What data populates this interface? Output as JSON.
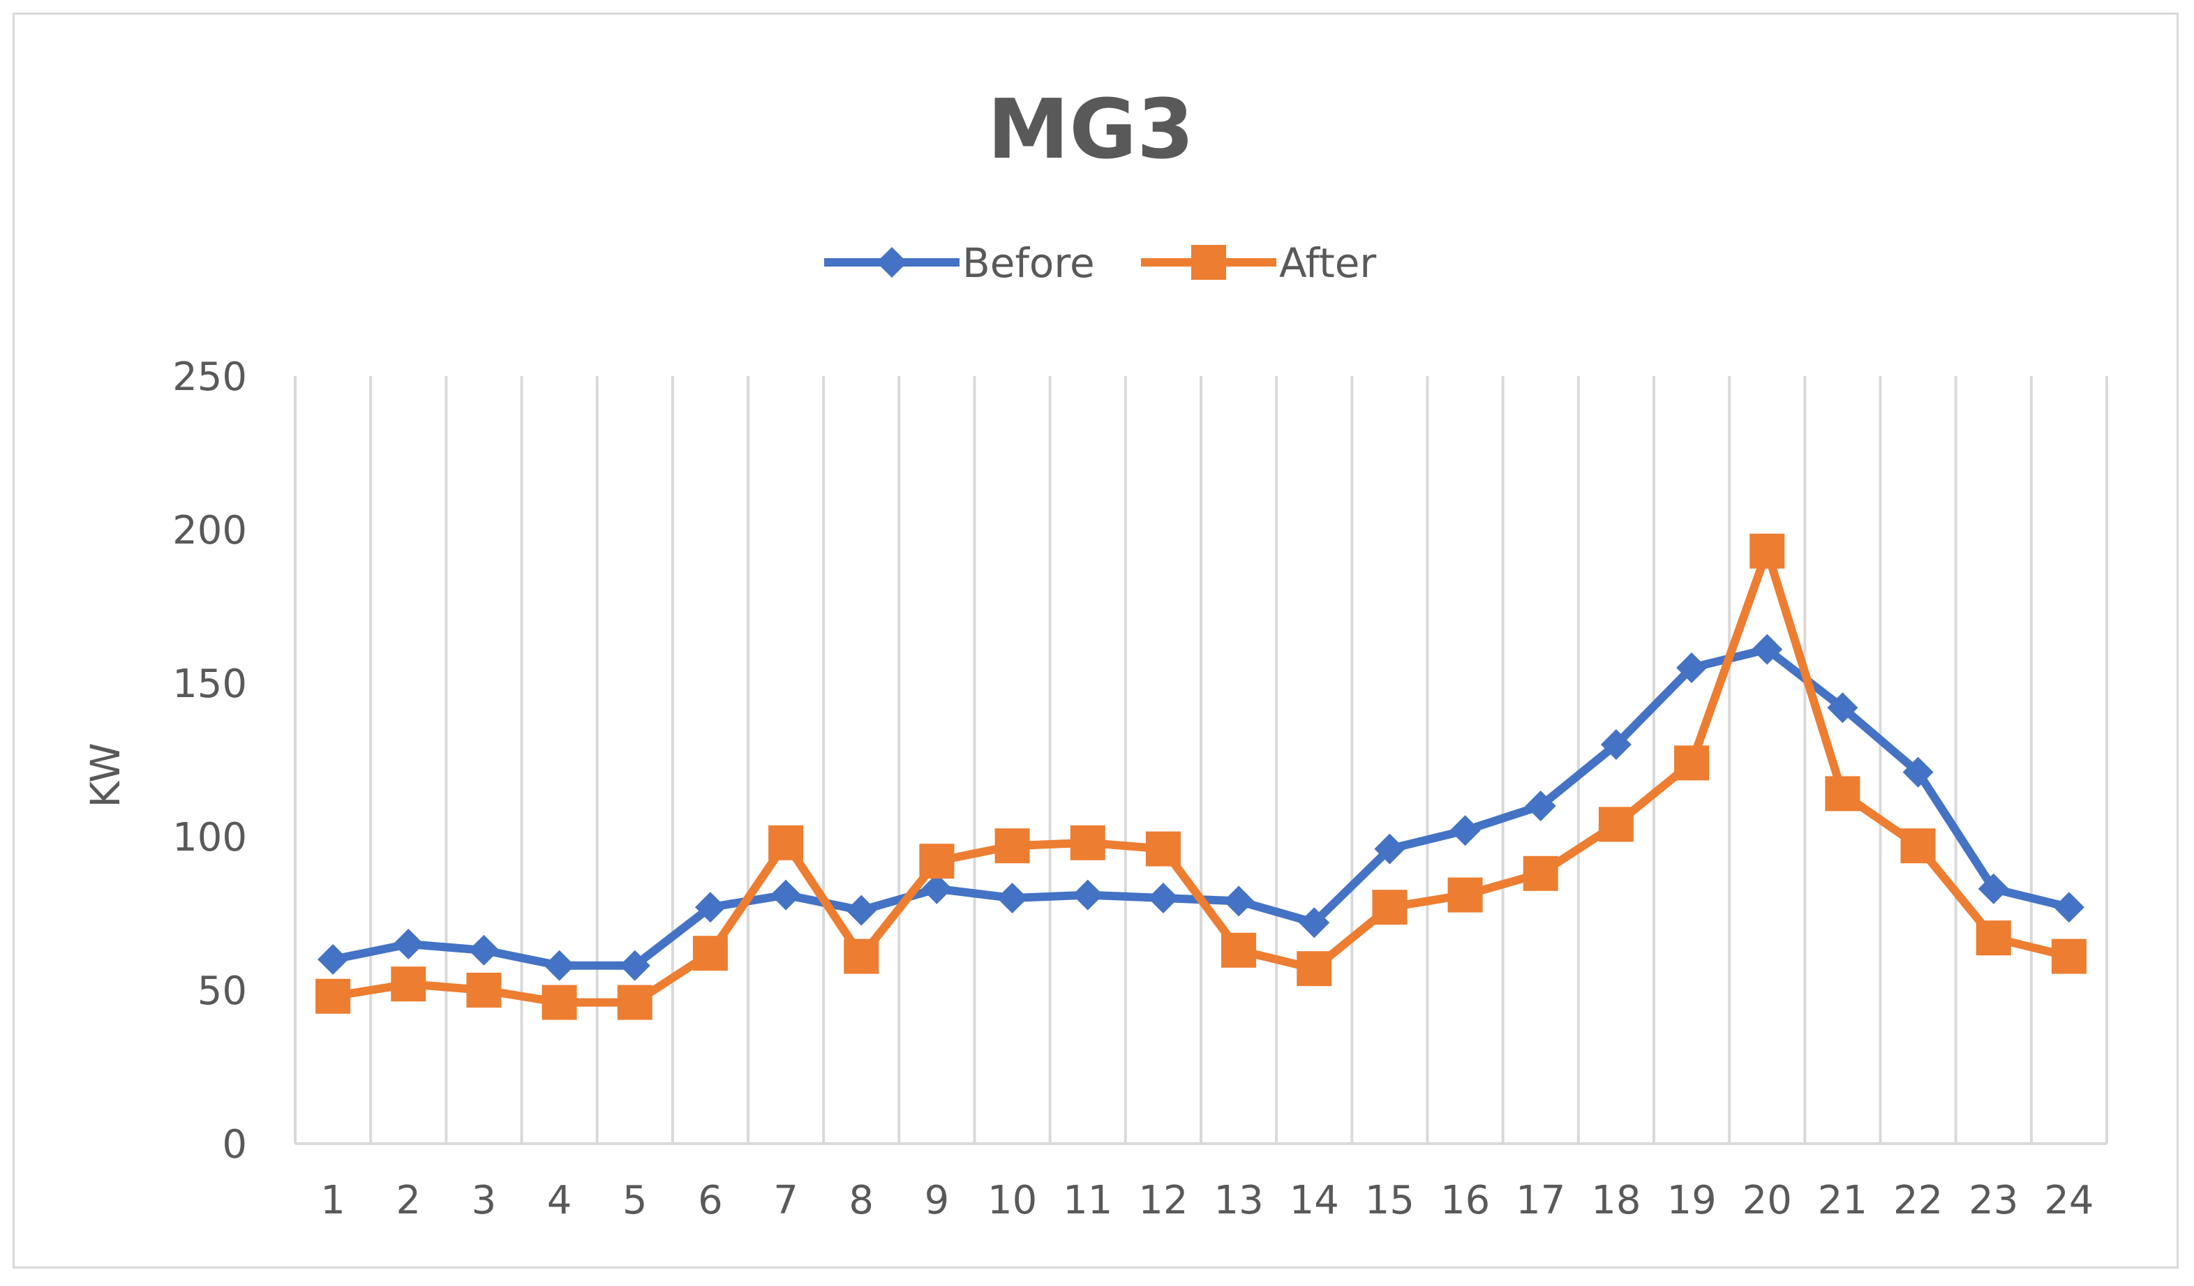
{
  "chart_data": {
    "type": "line",
    "title": "MG3",
    "xlabel": "",
    "ylabel": "KW",
    "ylim": [
      0,
      250
    ],
    "yticks": [
      0,
      50,
      100,
      150,
      200,
      250
    ],
    "categories": [
      "1",
      "2",
      "3",
      "4",
      "5",
      "6",
      "7",
      "8",
      "9",
      "10",
      "11",
      "12",
      "13",
      "14",
      "15",
      "16",
      "17",
      "18",
      "19",
      "20",
      "21",
      "22",
      "23",
      "24"
    ],
    "grid": "vertical",
    "legend_position": "top",
    "series": [
      {
        "name": "Before",
        "color": "#4472c4",
        "marker": "diamond",
        "values": [
          60,
          65,
          63,
          58,
          58,
          77,
          81,
          76,
          83,
          80,
          81,
          80,
          79,
          72,
          96,
          102,
          110,
          130,
          155,
          161,
          142,
          121,
          83,
          77
        ]
      },
      {
        "name": "After",
        "color": "#ed7d31",
        "marker": "square",
        "values": [
          48,
          52,
          50,
          46,
          46,
          62,
          98,
          61,
          92,
          97,
          98,
          96,
          63,
          57,
          77,
          81,
          88,
          104,
          124,
          193,
          114,
          97,
          67,
          61
        ]
      }
    ]
  }
}
